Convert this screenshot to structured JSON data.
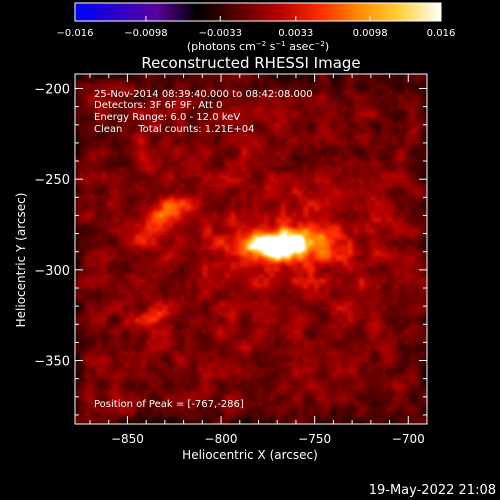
{
  "chart_data": {
    "type": "heatmap",
    "title": "Reconstructed RHESSI Image",
    "xlabel": "Heliocentric X (arcsec)",
    "ylabel": "Heliocentric Y (arcsec)",
    "xlim": [
      -878,
      -690
    ],
    "ylim": [
      -385,
      -192
    ],
    "x_ticks": [
      -850,
      -800,
      -750,
      -700
    ],
    "x_tick_labels": [
      "−850",
      "−800",
      "−750",
      "−700"
    ],
    "y_ticks": [
      -200,
      -250,
      -300,
      -350
    ],
    "y_tick_labels": [
      "−200",
      "−250",
      "−300",
      "−350"
    ],
    "colorbar": {
      "min": -0.016,
      "max": 0.016,
      "ticks": [
        -0.016,
        -0.0098,
        -0.0033,
        0.0033,
        0.0098,
        0.016
      ],
      "tick_labels": [
        "−0.016",
        "−0.0098",
        "−0.0033",
        "0.0033",
        "0.0098",
        "0.016"
      ],
      "unit_base": "(photons cm",
      "unit_exp1": "−2",
      "unit_mid": " s",
      "unit_exp2": "−1",
      "unit_post": " asec",
      "unit_exp3": "−2",
      "unit_end": ")",
      "colors": [
        "#0000ff",
        "#2a00c8",
        "#5a00a0",
        "#000000",
        "#5a0000",
        "#b40000",
        "#ff2a00",
        "#ff8c00",
        "#ffd23c",
        "#ffffff"
      ]
    },
    "annotations": [
      "25-Nov-2014 08:39:40.000 to 08:42:08.000",
      "Detectors: 3F 6F 9F, Att 0",
      "Energy Range: 6.0 - 12.0 keV",
      "Clean     Total counts: 1.21E+04"
    ],
    "peak_label": "Position of Peak = [-767,-286]",
    "peak": [
      -767,
      -286
    ],
    "sources": [
      {
        "x": -767,
        "y": -286,
        "peak": 1.0
      },
      {
        "x": -831,
        "y": -270,
        "peak": 0.72
      },
      {
        "x": -836,
        "y": -325,
        "peak": 0.6
      }
    ],
    "footer_date": "19-May-2022 21:08"
  }
}
